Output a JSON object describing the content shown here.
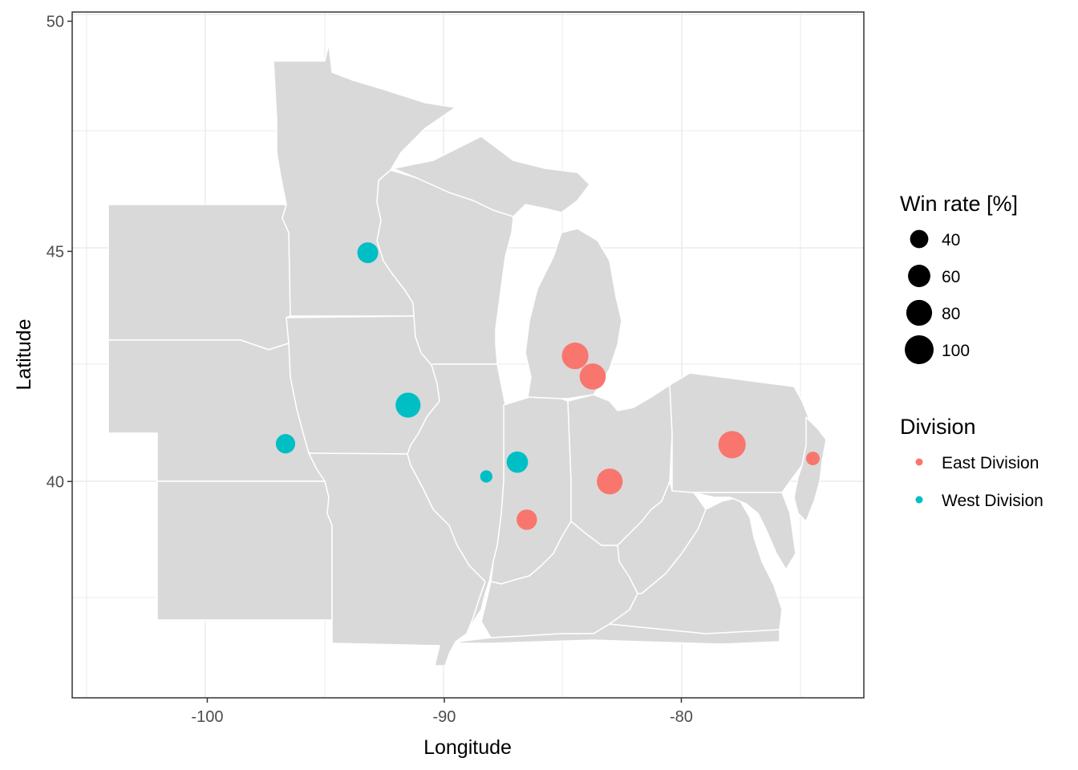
{
  "chart_data": {
    "type": "scatter",
    "title": "",
    "xlabel": "Longitude",
    "ylabel": "Latitude",
    "xlim": [
      -105.7,
      -72.3
    ],
    "ylim": [
      35.3,
      50.2
    ],
    "x_ticks": [
      -100,
      -90,
      -80
    ],
    "x_tick_labels": [
      "-100",
      "-90",
      "-80"
    ],
    "y_ticks": [
      40,
      45,
      50
    ],
    "y_tick_labels": [
      "40",
      "45",
      "50"
    ],
    "grid": true,
    "legend_position": "right",
    "size_legend": {
      "title": "Win rate [%]",
      "values": [
        40,
        60,
        80,
        100
      ],
      "labels": [
        "40",
        "60",
        "80",
        "100"
      ]
    },
    "color_legend": {
      "title": "Division",
      "entries": [
        {
          "label": "East Division",
          "color": "#F8766D"
        },
        {
          "label": "West Division",
          "color": "#00BFC4"
        }
      ]
    },
    "series": [
      {
        "name": "East Division",
        "color": "#F8766D",
        "points": [
          {
            "lon": -84.48,
            "lat": 42.73,
            "win_rate": 85
          },
          {
            "lon": -83.74,
            "lat": 42.28,
            "win_rate": 82
          },
          {
            "lon": -83.02,
            "lat": 40.0,
            "win_rate": 80
          },
          {
            "lon": -77.86,
            "lat": 40.8,
            "win_rate": 90
          },
          {
            "lon": -86.52,
            "lat": 39.17,
            "win_rate": 50
          },
          {
            "lon": -74.45,
            "lat": 40.5,
            "win_rate": 22
          }
        ]
      },
      {
        "name": "West Division",
        "color": "#00BFC4",
        "points": [
          {
            "lon": -93.23,
            "lat": 44.97,
            "win_rate": 52
          },
          {
            "lon": -91.53,
            "lat": 41.66,
            "win_rate": 75
          },
          {
            "lon": -96.7,
            "lat": 40.82,
            "win_rate": 45
          },
          {
            "lon": -86.92,
            "lat": 40.42,
            "win_rate": 55
          },
          {
            "lon": -88.23,
            "lat": 40.11,
            "win_rate": 18
          }
        ]
      }
    ]
  },
  "map": {
    "land_color": "#D9D9D9",
    "border_color": "#FFFFFF"
  }
}
